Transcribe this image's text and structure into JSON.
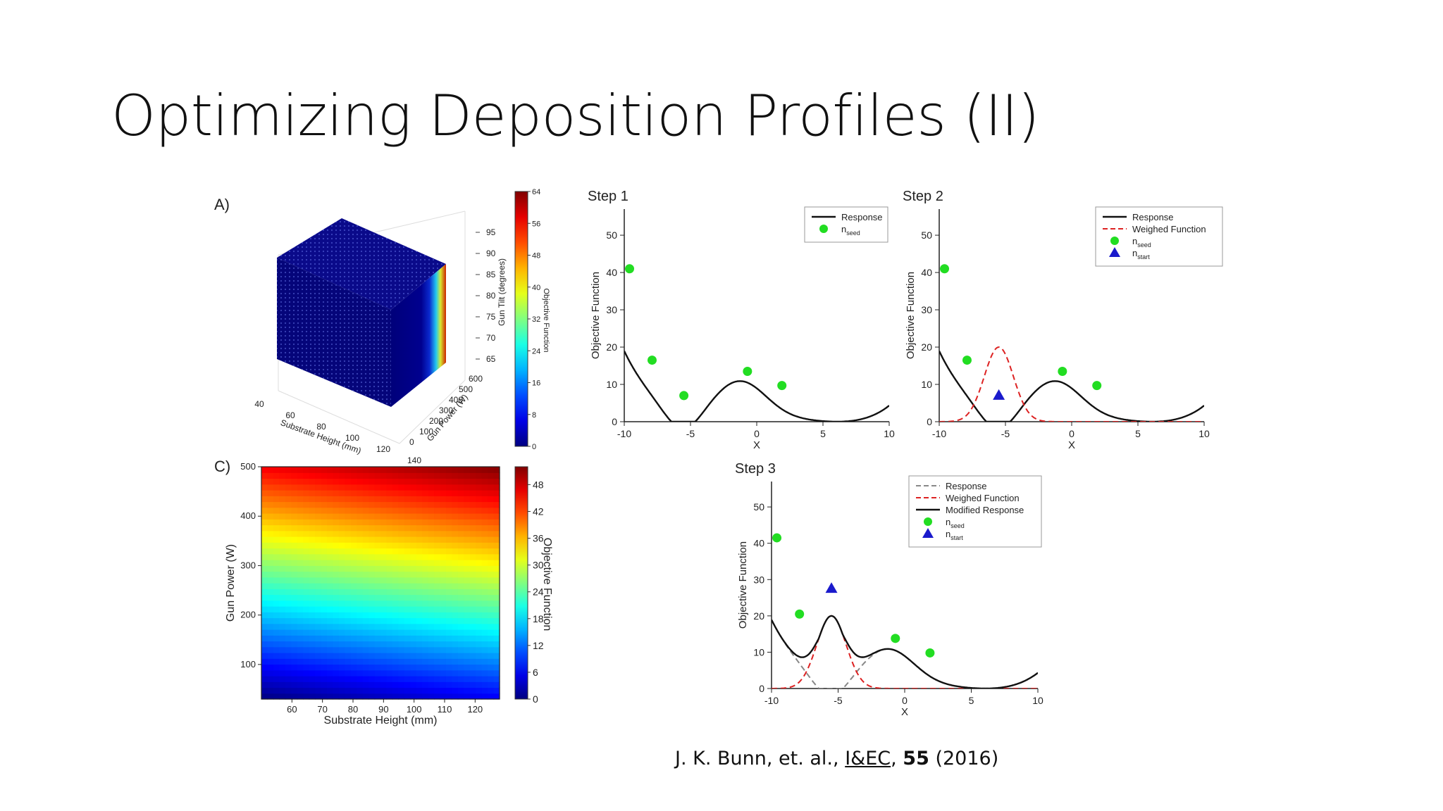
{
  "slide": {
    "title": "Optimizing Deposition Profiles (II)",
    "citation": {
      "authors": "J. K. Bunn, et. al., ",
      "journal": "I&EC",
      "sep": ", ",
      "volume": "55",
      "year": " (2016)"
    }
  },
  "chart_data": [
    {
      "type": "scatter3d",
      "panel_label": "A)",
      "xlabel": "Substrate Height (mm)",
      "ylabel": "Gun Power (W)",
      "zlabel": "Gun Tilt (degrees)",
      "x_ticks": [
        "40",
        "60",
        "80",
        "100",
        "120",
        "140"
      ],
      "y_ticks": [
        "0",
        "100",
        "200",
        "300",
        "400",
        "500",
        "600"
      ],
      "z_ticks": [
        "65",
        "70",
        "75",
        "80",
        "85",
        "90",
        "95"
      ],
      "colorbar": {
        "label": "Objective Function",
        "ticks": [
          "0",
          "8",
          "16",
          "24",
          "32",
          "40",
          "48",
          "56",
          "64"
        ],
        "range": [
          0,
          64
        ]
      },
      "description_values": {
        "xlim": [
          40,
          140
        ],
        "ylim": [
          0,
          600
        ],
        "zlim": [
          65,
          95
        ]
      }
    },
    {
      "type": "heatmap",
      "panel_label": "C)",
      "xlabel": "Substrate Height (mm)",
      "ylabel": "Gun Power (W)",
      "x_ticks": [
        "60",
        "70",
        "80",
        "90",
        "100",
        "110",
        "120"
      ],
      "y_ticks": [
        "100",
        "200",
        "300",
        "400",
        "500"
      ],
      "xlim": [
        50,
        128
      ],
      "ylim": [
        30,
        500
      ],
      "colorbar": {
        "label": "Objective Function",
        "ticks": [
          "0",
          "6",
          "12",
          "18",
          "24",
          "30",
          "36",
          "42",
          "48"
        ],
        "range": [
          0,
          52
        ]
      }
    },
    {
      "type": "line",
      "title": "Step 1",
      "xlabel": "X",
      "ylabel": "Objective Function",
      "xlim": [
        -10,
        10
      ],
      "ylim": [
        0,
        57
      ],
      "x_ticks": [
        "-10",
        "-5",
        "0",
        "5",
        "10"
      ],
      "y_ticks": [
        "0",
        "10",
        "20",
        "30",
        "40",
        "50"
      ],
      "legend": {
        "position": "top-right",
        "entries": [
          {
            "label": "Response",
            "kind": "line",
            "color": "#111111"
          },
          {
            "label": "n",
            "sub": "seed",
            "kind": "circle",
            "color": "#22dd22"
          }
        ]
      },
      "series": [
        {
          "name": "Response",
          "kind": "response"
        }
      ],
      "seeds": [
        [
          -9.6,
          41
        ],
        [
          -7.9,
          16.5
        ],
        [
          -5.5,
          7
        ],
        [
          -0.7,
          13.5
        ],
        [
          1.9,
          9.7
        ]
      ]
    },
    {
      "type": "line",
      "title": "Step 2",
      "xlabel": "X",
      "ylabel": "Objective Function",
      "xlim": [
        -10,
        10
      ],
      "ylim": [
        0,
        57
      ],
      "x_ticks": [
        "-10",
        "-5",
        "0",
        "5",
        "10"
      ],
      "y_ticks": [
        "0",
        "10",
        "20",
        "30",
        "40",
        "50"
      ],
      "legend": {
        "position": "top-right",
        "entries": [
          {
            "label": "Response",
            "kind": "line",
            "color": "#111111"
          },
          {
            "label": "Weighed Function",
            "kind": "dash",
            "color": "#dd2222"
          },
          {
            "label": "n",
            "sub": "seed",
            "kind": "circle",
            "color": "#22dd22"
          },
          {
            "label": "n",
            "sub": "start",
            "kind": "triangle",
            "color": "#1a1acc"
          }
        ]
      },
      "series": [
        {
          "name": "Response",
          "kind": "response"
        },
        {
          "name": "Weighed Function",
          "kind": "weighed"
        }
      ],
      "seeds": [
        [
          -9.6,
          41
        ],
        [
          -7.9,
          16.5
        ],
        [
          -0.7,
          13.5
        ],
        [
          1.9,
          9.7
        ]
      ],
      "start": [
        -5.5,
        7
      ]
    },
    {
      "type": "line",
      "title": "Step 3",
      "xlabel": "X",
      "ylabel": "Objective Function",
      "xlim": [
        -10,
        10
      ],
      "ylim": [
        0,
        57
      ],
      "x_ticks": [
        "-10",
        "-5",
        "0",
        "5",
        "10"
      ],
      "y_ticks": [
        "0",
        "10",
        "20",
        "30",
        "40",
        "50"
      ],
      "legend": {
        "position": "top-right",
        "entries": [
          {
            "label": "Response",
            "kind": "dash",
            "color": "#888888"
          },
          {
            "label": "Weighed Function",
            "kind": "dash",
            "color": "#dd2222"
          },
          {
            "label": "Modified Response",
            "kind": "line",
            "color": "#111111"
          },
          {
            "label": "n",
            "sub": "seed",
            "kind": "circle",
            "color": "#22dd22"
          },
          {
            "label": "n",
            "sub": "start",
            "kind": "triangle",
            "color": "#1a1acc"
          }
        ]
      },
      "series": [
        {
          "name": "Response",
          "kind": "response-dashed"
        },
        {
          "name": "Weighed Function",
          "kind": "weighed"
        },
        {
          "name": "Modified Response",
          "kind": "modified"
        }
      ],
      "seeds": [
        [
          -9.6,
          41.5
        ],
        [
          -7.9,
          20.5
        ],
        [
          -0.7,
          13.8
        ],
        [
          1.9,
          9.8
        ]
      ],
      "start": [
        -5.5,
        27.5
      ]
    }
  ]
}
